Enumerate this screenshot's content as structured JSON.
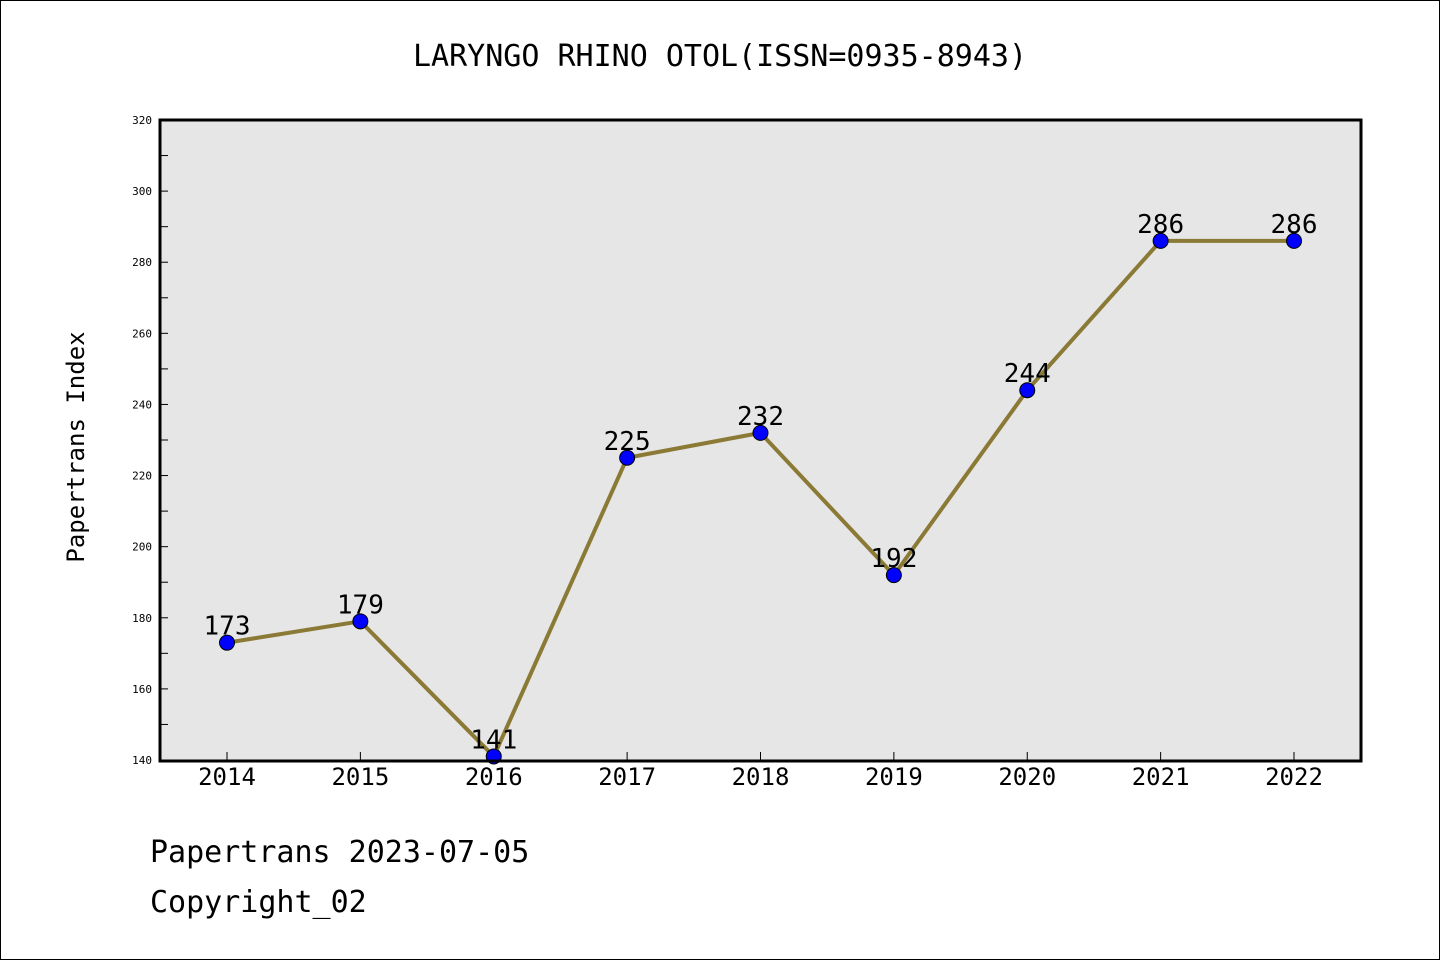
{
  "chart_data": {
    "type": "line",
    "title": "LARYNGO RHINO OTOL(ISSN=0935-8943)",
    "ylabel": "Papertrans Index",
    "xlabel": "",
    "categories": [
      "2014",
      "2015",
      "2016",
      "2017",
      "2018",
      "2019",
      "2020",
      "2021",
      "2022"
    ],
    "values": [
      173,
      179,
      141,
      225,
      232,
      192,
      244,
      286,
      286
    ],
    "ylim": [
      140,
      320
    ],
    "yticks": [
      140,
      160,
      180,
      200,
      220,
      240,
      260,
      280,
      300,
      320
    ],
    "grid": false,
    "line_color": "#8b7a35",
    "marker_color": "#0000ff",
    "plot_background": "#e6e6e6"
  },
  "footer": {
    "date_line": "Papertrans 2023-07-05",
    "copyright_line": "Copyright_02"
  }
}
